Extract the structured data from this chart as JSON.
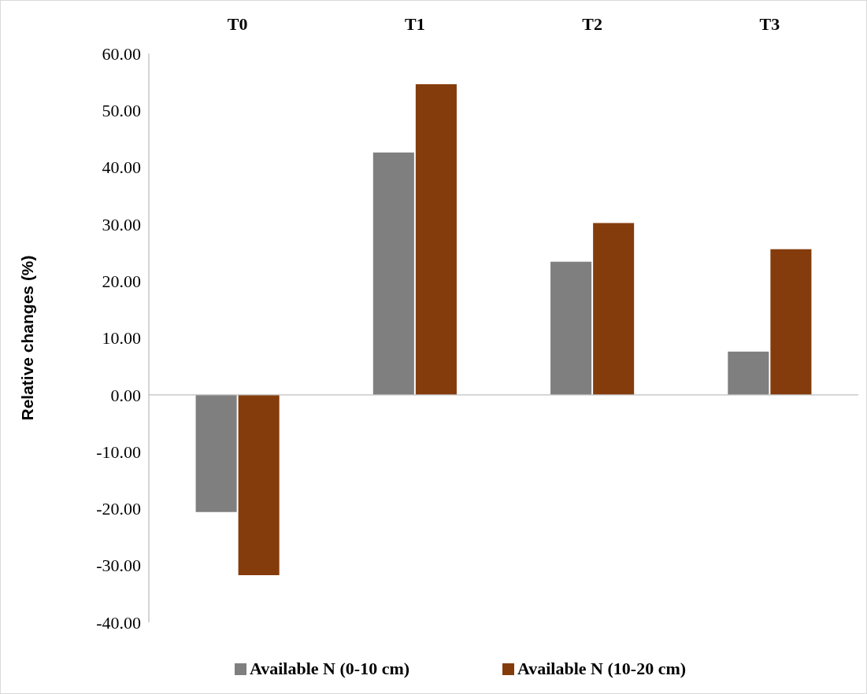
{
  "chart_data": {
    "type": "bar",
    "ylabel": "Relative changes (%)",
    "categories": [
      "T0",
      "T1",
      "T2",
      "T3"
    ],
    "series": [
      {
        "name": "Available N (0-10 cm)",
        "color": "#7f7f7f",
        "values": [
          -20.6,
          42.6,
          23.4,
          7.6
        ]
      },
      {
        "name": "Available N (10-20 cm)",
        "color": "#843c0c",
        "values": [
          -31.7,
          54.6,
          30.2,
          25.6
        ]
      }
    ],
    "ylim": [
      -40,
      60
    ],
    "yticks": [
      {
        "value": -40,
        "label": "-40.00"
      },
      {
        "value": -30,
        "label": "-30.00"
      },
      {
        "value": -20,
        "label": "-20.00"
      },
      {
        "value": -10,
        "label": "-10.00"
      },
      {
        "value": 0,
        "label": "0.00"
      },
      {
        "value": 10,
        "label": "10.00"
      },
      {
        "value": 20,
        "label": "20.00"
      },
      {
        "value": 30,
        "label": "30.00"
      },
      {
        "value": 40,
        "label": "40.00"
      },
      {
        "value": 50,
        "label": "50.00"
      },
      {
        "value": 60,
        "label": "60.00"
      }
    ],
    "legend": "bottom"
  }
}
